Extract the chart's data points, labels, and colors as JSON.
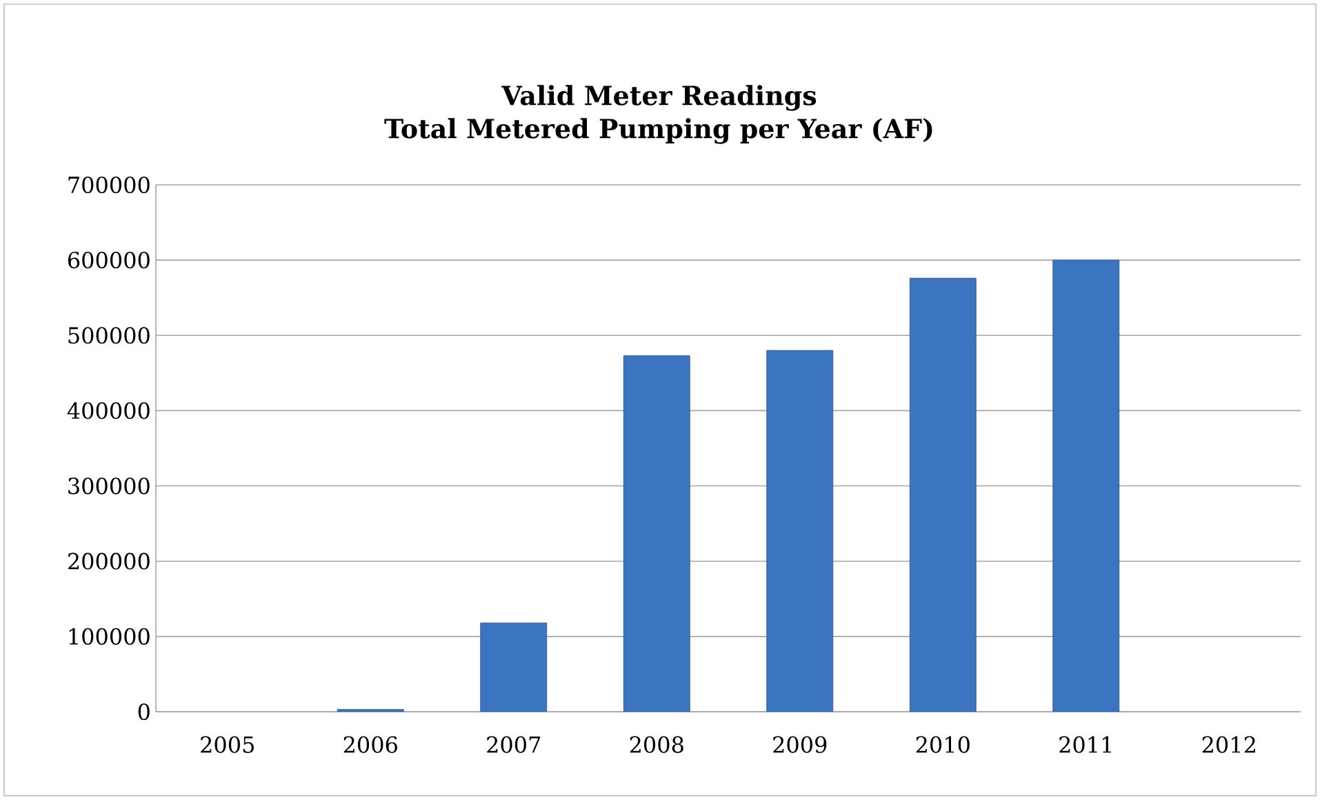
{
  "chart_data": {
    "type": "bar",
    "title": "Valid Meter Readings\nTotal Metered Pumping per Year (AF)",
    "categories": [
      "2005",
      "2006",
      "2007",
      "2008",
      "2009",
      "2010",
      "2011",
      "2012"
    ],
    "values": [
      null,
      3000,
      118000,
      473000,
      480000,
      576000,
      600000,
      null
    ],
    "color": "#3b74c0",
    "ylim": [
      0,
      700000
    ],
    "yticks": [
      0,
      100000,
      200000,
      300000,
      400000,
      500000,
      600000,
      700000
    ],
    "grid": "y"
  }
}
